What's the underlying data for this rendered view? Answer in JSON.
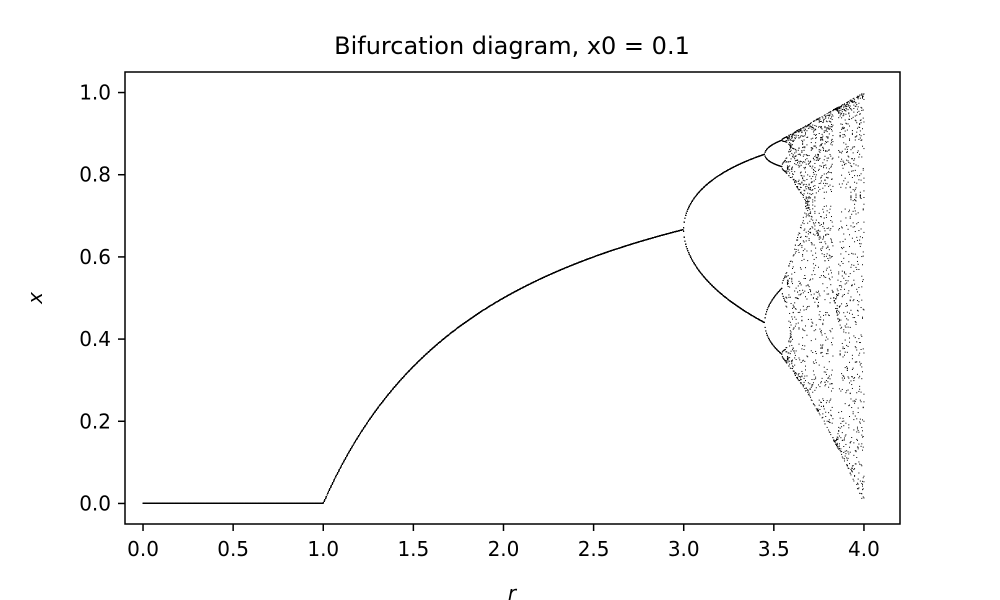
{
  "chart_data": {
    "type": "scatter",
    "title": "Bifurcation diagram, x0 = 0.1",
    "xlabel": "r",
    "ylabel": "x",
    "xlim": [
      -0.1,
      4.2
    ],
    "ylim": [
      -0.05,
      1.05
    ],
    "x_ticks": [
      "0.0",
      "0.5",
      "1.0",
      "1.5",
      "2.0",
      "2.5",
      "3.0",
      "3.5",
      "4.0"
    ],
    "y_ticks": [
      "0.0",
      "0.2",
      "0.4",
      "0.6",
      "0.8",
      "1.0"
    ],
    "grid": false,
    "map": "logistic x_{n+1} = r x_n (1 - x_n)",
    "x0": 0.1,
    "r_range": [
      0.0,
      4.0
    ],
    "r_samples": 1000,
    "points_per_r": 20,
    "marker_color": "#000000"
  }
}
